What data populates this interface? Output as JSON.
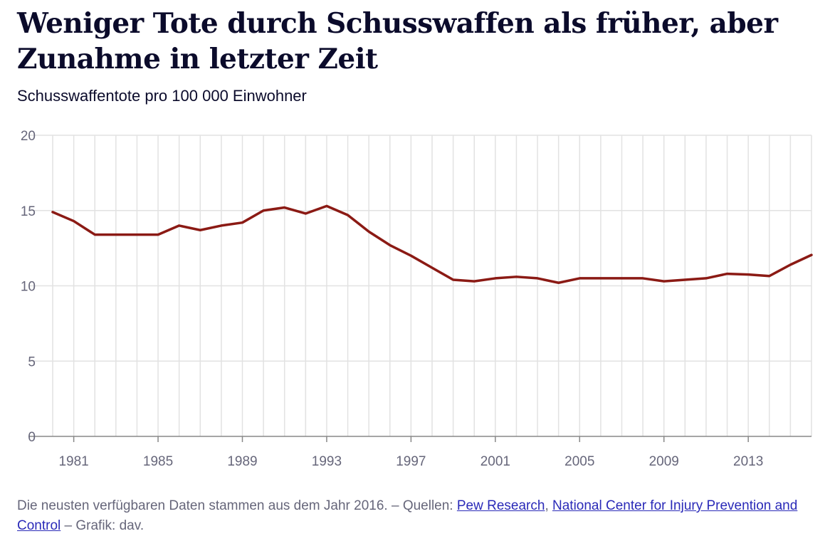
{
  "title": "Weniger Tote durch Schusswaffen als früher, aber Zunahme in letzter Zeit",
  "subtitle": "Schusswaffentote pro 100 000 Einwohner",
  "colors": {
    "line": "#8b1a14",
    "grid": "#e2e2e2",
    "axis": "#888888",
    "text": "#0b0b2b",
    "muted": "#66667a",
    "link": "#2a2ab8"
  },
  "chart_data": {
    "type": "line",
    "title": "",
    "xlabel": "",
    "ylabel": "",
    "x": [
      1980,
      1981,
      1982,
      1983,
      1984,
      1985,
      1986,
      1987,
      1988,
      1989,
      1990,
      1991,
      1992,
      1993,
      1994,
      1995,
      1996,
      1997,
      1998,
      1999,
      2000,
      2001,
      2002,
      2003,
      2004,
      2005,
      2006,
      2007,
      2008,
      2009,
      2010,
      2011,
      2012,
      2013,
      2014,
      2015,
      2016
    ],
    "series": [
      {
        "values": [
          14.9,
          14.3,
          13.4,
          13.4,
          13.4,
          13.4,
          14.0,
          13.7,
          14.0,
          14.2,
          15.0,
          15.2,
          14.8,
          15.3,
          14.7,
          13.6,
          12.7,
          12.0,
          11.2,
          10.4,
          10.3,
          10.5,
          10.6,
          10.5,
          10.2,
          10.5,
          10.5,
          10.5,
          10.5,
          10.3,
          10.4,
          10.5,
          10.8,
          10.75,
          10.65,
          11.4,
          12.05
        ]
      }
    ],
    "xlim": [
      1980,
      2016
    ],
    "ylim": [
      0,
      20
    ],
    "y_ticks": [
      "0",
      "5",
      "10",
      "15",
      "20"
    ],
    "x_ticks": [
      "1981",
      "1985",
      "1989",
      "1993",
      "1997",
      "2001",
      "2005",
      "2009",
      "2013"
    ],
    "grid": true,
    "legend": "none"
  },
  "footer": {
    "text1": "Die neusten verfügbaren Daten stammen aus dem Jahr 2016. – Quellen: ",
    "link1": "Pew Research",
    "sep": ", ",
    "link2": "National Center for Injury Prevention and Control",
    "text2": " – Grafik: dav."
  }
}
